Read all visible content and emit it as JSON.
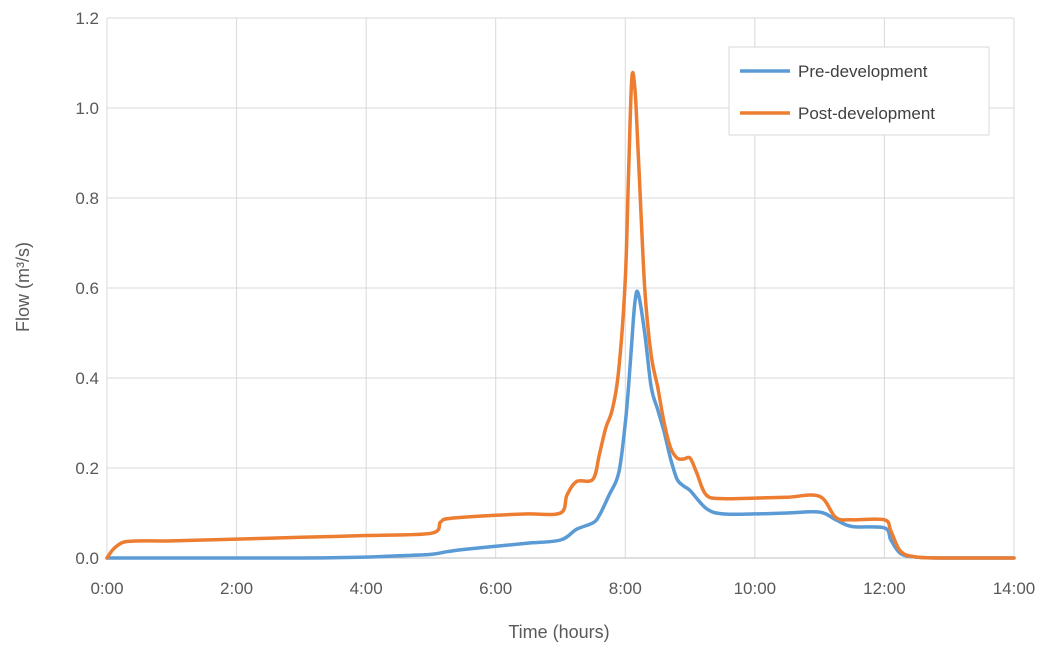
{
  "chart_data": {
    "type": "line",
    "title": "",
    "xlabel": "Time (hours)",
    "ylabel": "Flow (m³/s)",
    "xlim": [
      0,
      14
    ],
    "ylim": [
      0,
      1.2
    ],
    "x_ticks": [
      0,
      2,
      4,
      6,
      8,
      10,
      12,
      14
    ],
    "x_tick_labels": [
      "0:00",
      "2:00",
      "4:00",
      "6:00",
      "8:00",
      "10:00",
      "12:00",
      "14:00"
    ],
    "y_ticks": [
      0,
      0.2,
      0.4,
      0.6,
      0.8,
      1.0,
      1.2
    ],
    "y_tick_labels": [
      "0.0",
      "0.2",
      "0.4",
      "0.6",
      "0.8",
      "1.0",
      "1.2"
    ],
    "grid": true,
    "legend_position": "top-right",
    "series": [
      {
        "name": "Pre-development",
        "color": "#5b9bd5",
        "x": [
          0,
          0.5,
          1,
          2,
          3,
          4,
          4.5,
          5,
          5.25,
          5.5,
          6,
          6.5,
          7,
          7.25,
          7.5,
          7.6,
          7.75,
          7.9,
          8.0,
          8.05,
          8.1,
          8.15,
          8.2,
          8.3,
          8.4,
          8.5,
          8.6,
          8.7,
          8.8,
          8.9,
          9.0,
          9.25,
          9.5,
          10,
          10.5,
          11,
          11.25,
          11.5,
          12,
          12.1,
          12.25,
          12.5,
          13,
          14
        ],
        "y": [
          0,
          0,
          0,
          0,
          0,
          0.002,
          0.005,
          0.008,
          0.014,
          0.019,
          0.026,
          0.033,
          0.04,
          0.064,
          0.078,
          0.095,
          0.14,
          0.19,
          0.3,
          0.38,
          0.48,
          0.57,
          0.588,
          0.5,
          0.38,
          0.33,
          0.28,
          0.22,
          0.175,
          0.16,
          0.15,
          0.11,
          0.098,
          0.098,
          0.1,
          0.102,
          0.085,
          0.07,
          0.067,
          0.04,
          0.01,
          0.002,
          0,
          0
        ]
      },
      {
        "name": "Post-development",
        "color": "#ed7d31",
        "x": [
          0,
          0.1,
          0.25,
          0.5,
          1,
          2,
          3,
          4,
          5,
          5.15,
          5.3,
          6,
          6.5,
          7,
          7.1,
          7.25,
          7.5,
          7.6,
          7.7,
          7.8,
          7.9,
          8.0,
          8.05,
          8.1,
          8.15,
          8.2,
          8.3,
          8.4,
          8.5,
          8.6,
          8.7,
          8.8,
          8.9,
          9.0,
          9.1,
          9.25,
          9.5,
          10,
          10.5,
          11,
          11.25,
          11.5,
          12,
          12.1,
          12.25,
          12.5,
          13,
          14
        ],
        "y": [
          0,
          0.02,
          0.035,
          0.038,
          0.038,
          0.042,
          0.046,
          0.05,
          0.055,
          0.08,
          0.088,
          0.095,
          0.098,
          0.1,
          0.14,
          0.17,
          0.175,
          0.23,
          0.29,
          0.33,
          0.42,
          0.62,
          0.85,
          1.065,
          1.04,
          0.9,
          0.6,
          0.45,
          0.38,
          0.3,
          0.245,
          0.222,
          0.22,
          0.222,
          0.19,
          0.14,
          0.132,
          0.133,
          0.135,
          0.137,
          0.09,
          0.085,
          0.085,
          0.06,
          0.015,
          0.002,
          0,
          0
        ]
      }
    ]
  }
}
